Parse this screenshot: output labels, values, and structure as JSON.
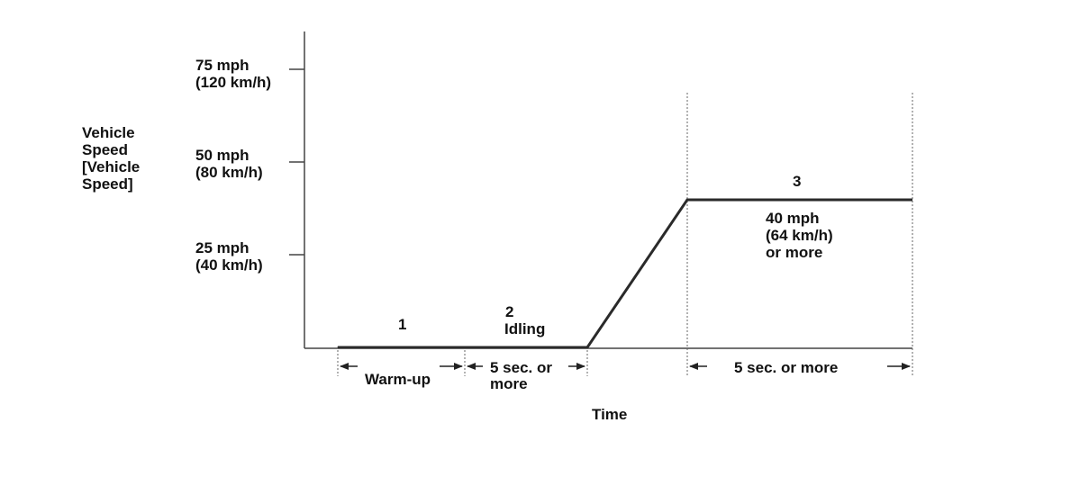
{
  "y_axis": {
    "label_lines": [
      "Vehicle",
      "Speed",
      "[Vehicle",
      "Speed]"
    ],
    "ticks": [
      {
        "value_mph": 75,
        "line1": "75 mph",
        "line2": "(120 km/h)"
      },
      {
        "value_mph": 50,
        "line1": "50 mph",
        "line2": "(80 km/h)"
      },
      {
        "value_mph": 25,
        "line1": "25 mph",
        "line2": "(40 km/h)"
      }
    ]
  },
  "x_axis": {
    "label": "Time"
  },
  "phases": [
    {
      "number": "1",
      "name": "",
      "duration_lines": [
        "Warm-up"
      ]
    },
    {
      "number": "2",
      "name": "Idling",
      "duration_lines": [
        "5 sec. or",
        "more"
      ]
    },
    {
      "number": "3",
      "name": "",
      "speed_lines": [
        "40 mph",
        "(64 km/h)",
        "or more"
      ],
      "duration_lines": [
        "5 sec. or more"
      ]
    }
  ],
  "profile": {
    "idle_speed_mph": 0,
    "cruise_speed_mph": 40
  }
}
